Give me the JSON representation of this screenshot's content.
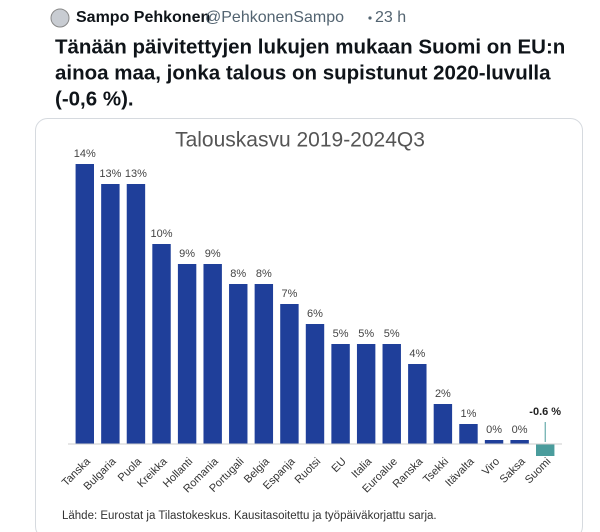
{
  "tweet": {
    "name": "Sampo Pehkonen",
    "handle": "@PehkonenSampo",
    "time": "23 h",
    "text_lines": [
      "Tänään päivitettyjen lukujen mukaan Suomi on EU:n",
      "ainoa maa, jonka talous on supistunut 2020-luvulla",
      "(-0,6 %)."
    ]
  },
  "chart_data": {
    "type": "bar",
    "title": "Talouskasvu 2019-2024Q3",
    "categories": [
      "Tanska",
      "Bulgaria",
      "Puola",
      "Kreikka",
      "Hollanti",
      "Romania",
      "Portugali",
      "Belgia",
      "Espanja",
      "Ruotsi",
      "EU",
      "Italia",
      "Euroalue",
      "Ranska",
      "Tsekki",
      "Itävalta",
      "Viro",
      "Saksa",
      "Suomi"
    ],
    "values": [
      14,
      13,
      13,
      10,
      9,
      9,
      8,
      8,
      7,
      6,
      5,
      5,
      5,
      4,
      2,
      1,
      0.2,
      0.2,
      -0.6
    ],
    "value_labels": [
      "14%",
      "13%",
      "13%",
      "10%",
      "9%",
      "9%",
      "8%",
      "8%",
      "7%",
      "6%",
      "5%",
      "5%",
      "5%",
      "4%",
      "2%",
      "1%",
      "0%",
      "0%",
      "-0.6 %"
    ],
    "colors": [
      "#1f3f9a",
      "#1f3f9a",
      "#1f3f9a",
      "#1f3f9a",
      "#1f3f9a",
      "#1f3f9a",
      "#1f3f9a",
      "#1f3f9a",
      "#1f3f9a",
      "#1f3f9a",
      "#1f3f9a",
      "#1f3f9a",
      "#1f3f9a",
      "#1f3f9a",
      "#1f3f9a",
      "#1f3f9a",
      "#1f3f9a",
      "#1f3f9a",
      "#4a9c9c"
    ],
    "ylim": [
      -1,
      15
    ],
    "source": "Lähde: Eurostat ja Tilastokeskus. Kausitasoitettu ja työpäiväkorjattu sarja."
  }
}
